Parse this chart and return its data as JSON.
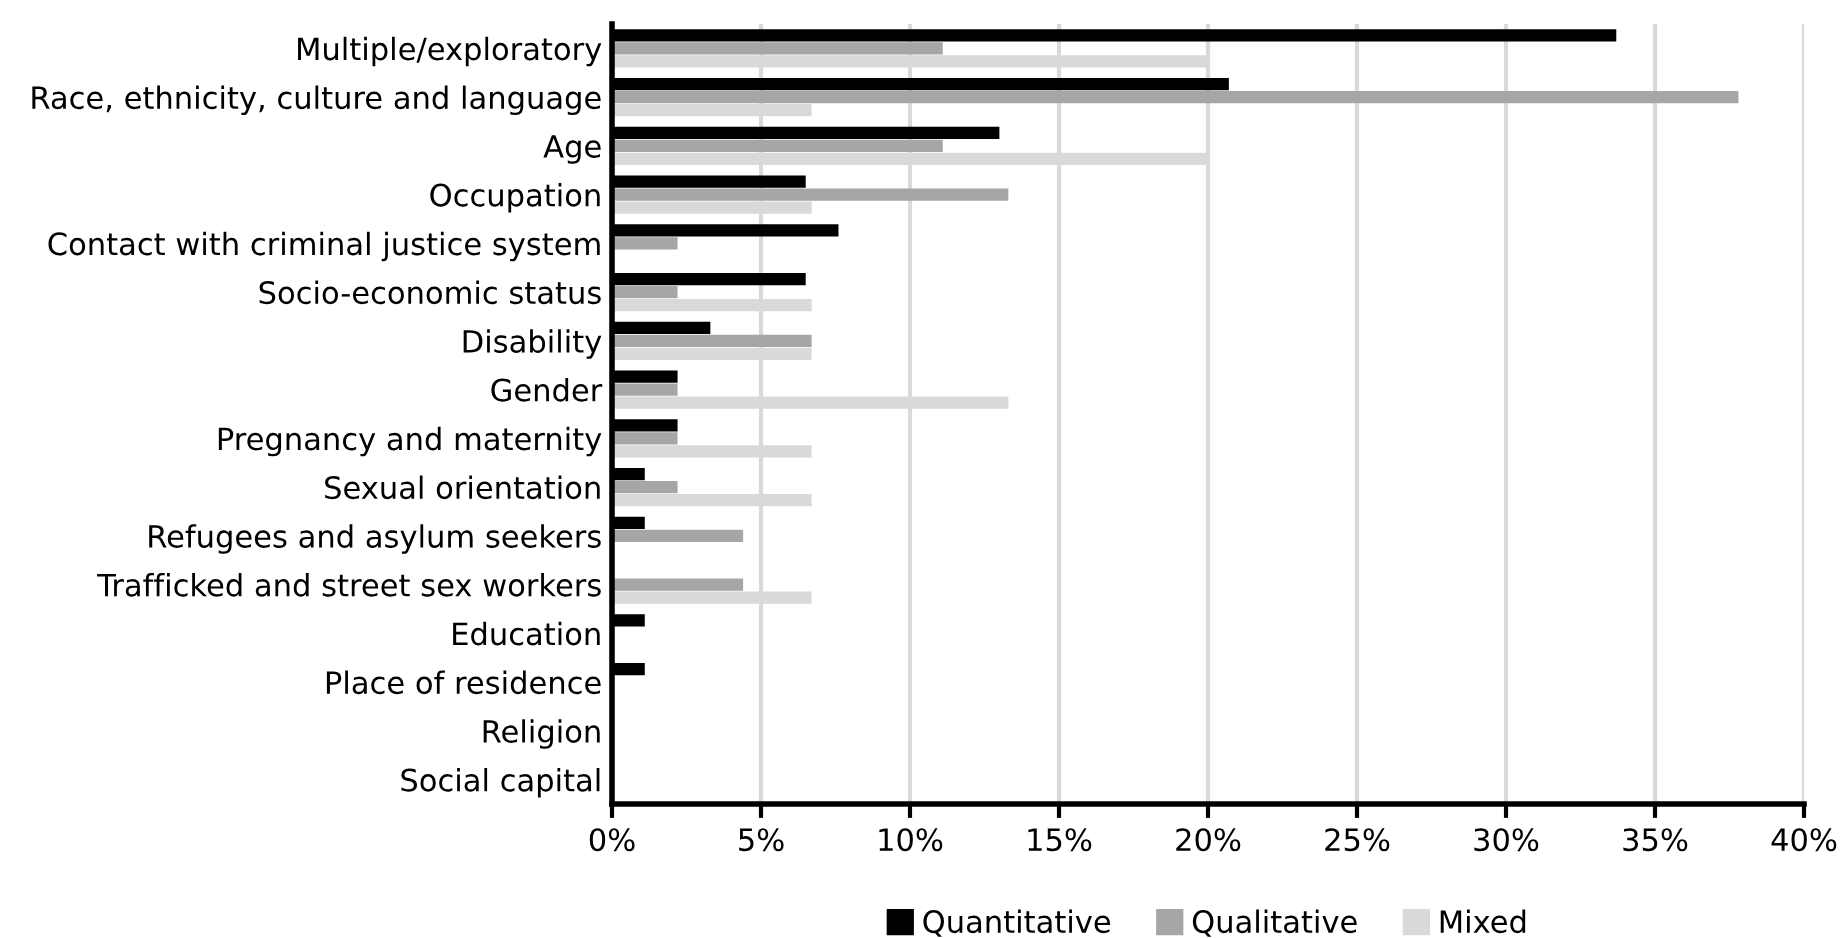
{
  "chart_data": {
    "type": "bar",
    "orientation": "horizontal",
    "categories": [
      "Multiple/exploratory",
      "Race, ethnicity, culture and language",
      "Age",
      "Occupation",
      "Contact with criminal justice system",
      "Socio-economic status",
      "Disability",
      "Gender",
      "Pregnancy and maternity",
      "Sexual orientation",
      "Refugees and asylum seekers",
      "Trafficked and street sex workers",
      "Education",
      "Place of residence",
      "Religion",
      "Social capital"
    ],
    "series": [
      {
        "name": "Quantitative",
        "color": "#000000",
        "values": [
          33.7,
          20.7,
          13.0,
          6.5,
          7.6,
          6.5,
          3.3,
          2.2,
          2.2,
          1.1,
          1.1,
          0,
          1.1,
          1.1,
          0,
          0
        ]
      },
      {
        "name": "Qualitative",
        "color": "#a6a6a6",
        "values": [
          11.1,
          37.8,
          11.1,
          13.3,
          2.2,
          2.2,
          6.7,
          2.2,
          2.2,
          2.2,
          4.4,
          4.4,
          0,
          0,
          0,
          0
        ]
      },
      {
        "name": "Mixed",
        "color": "#d9d9d9",
        "values": [
          20.0,
          6.7,
          20.0,
          6.7,
          0,
          6.7,
          6.7,
          13.3,
          6.7,
          6.7,
          0,
          6.7,
          0,
          0,
          0,
          0
        ]
      }
    ],
    "xlim": [
      0,
      40
    ],
    "xticks": [
      {
        "value": 0,
        "label": "0%"
      },
      {
        "value": 5,
        "label": "5%"
      },
      {
        "value": 10,
        "label": "10%"
      },
      {
        "value": 15,
        "label": "15%"
      },
      {
        "value": 20,
        "label": "20%"
      },
      {
        "value": 25,
        "label": "25%"
      },
      {
        "value": 30,
        "label": "30%"
      },
      {
        "value": 35,
        "label": "35%"
      },
      {
        "value": 40,
        "label": "40%"
      }
    ],
    "grid": "x",
    "legend": "bottom"
  }
}
